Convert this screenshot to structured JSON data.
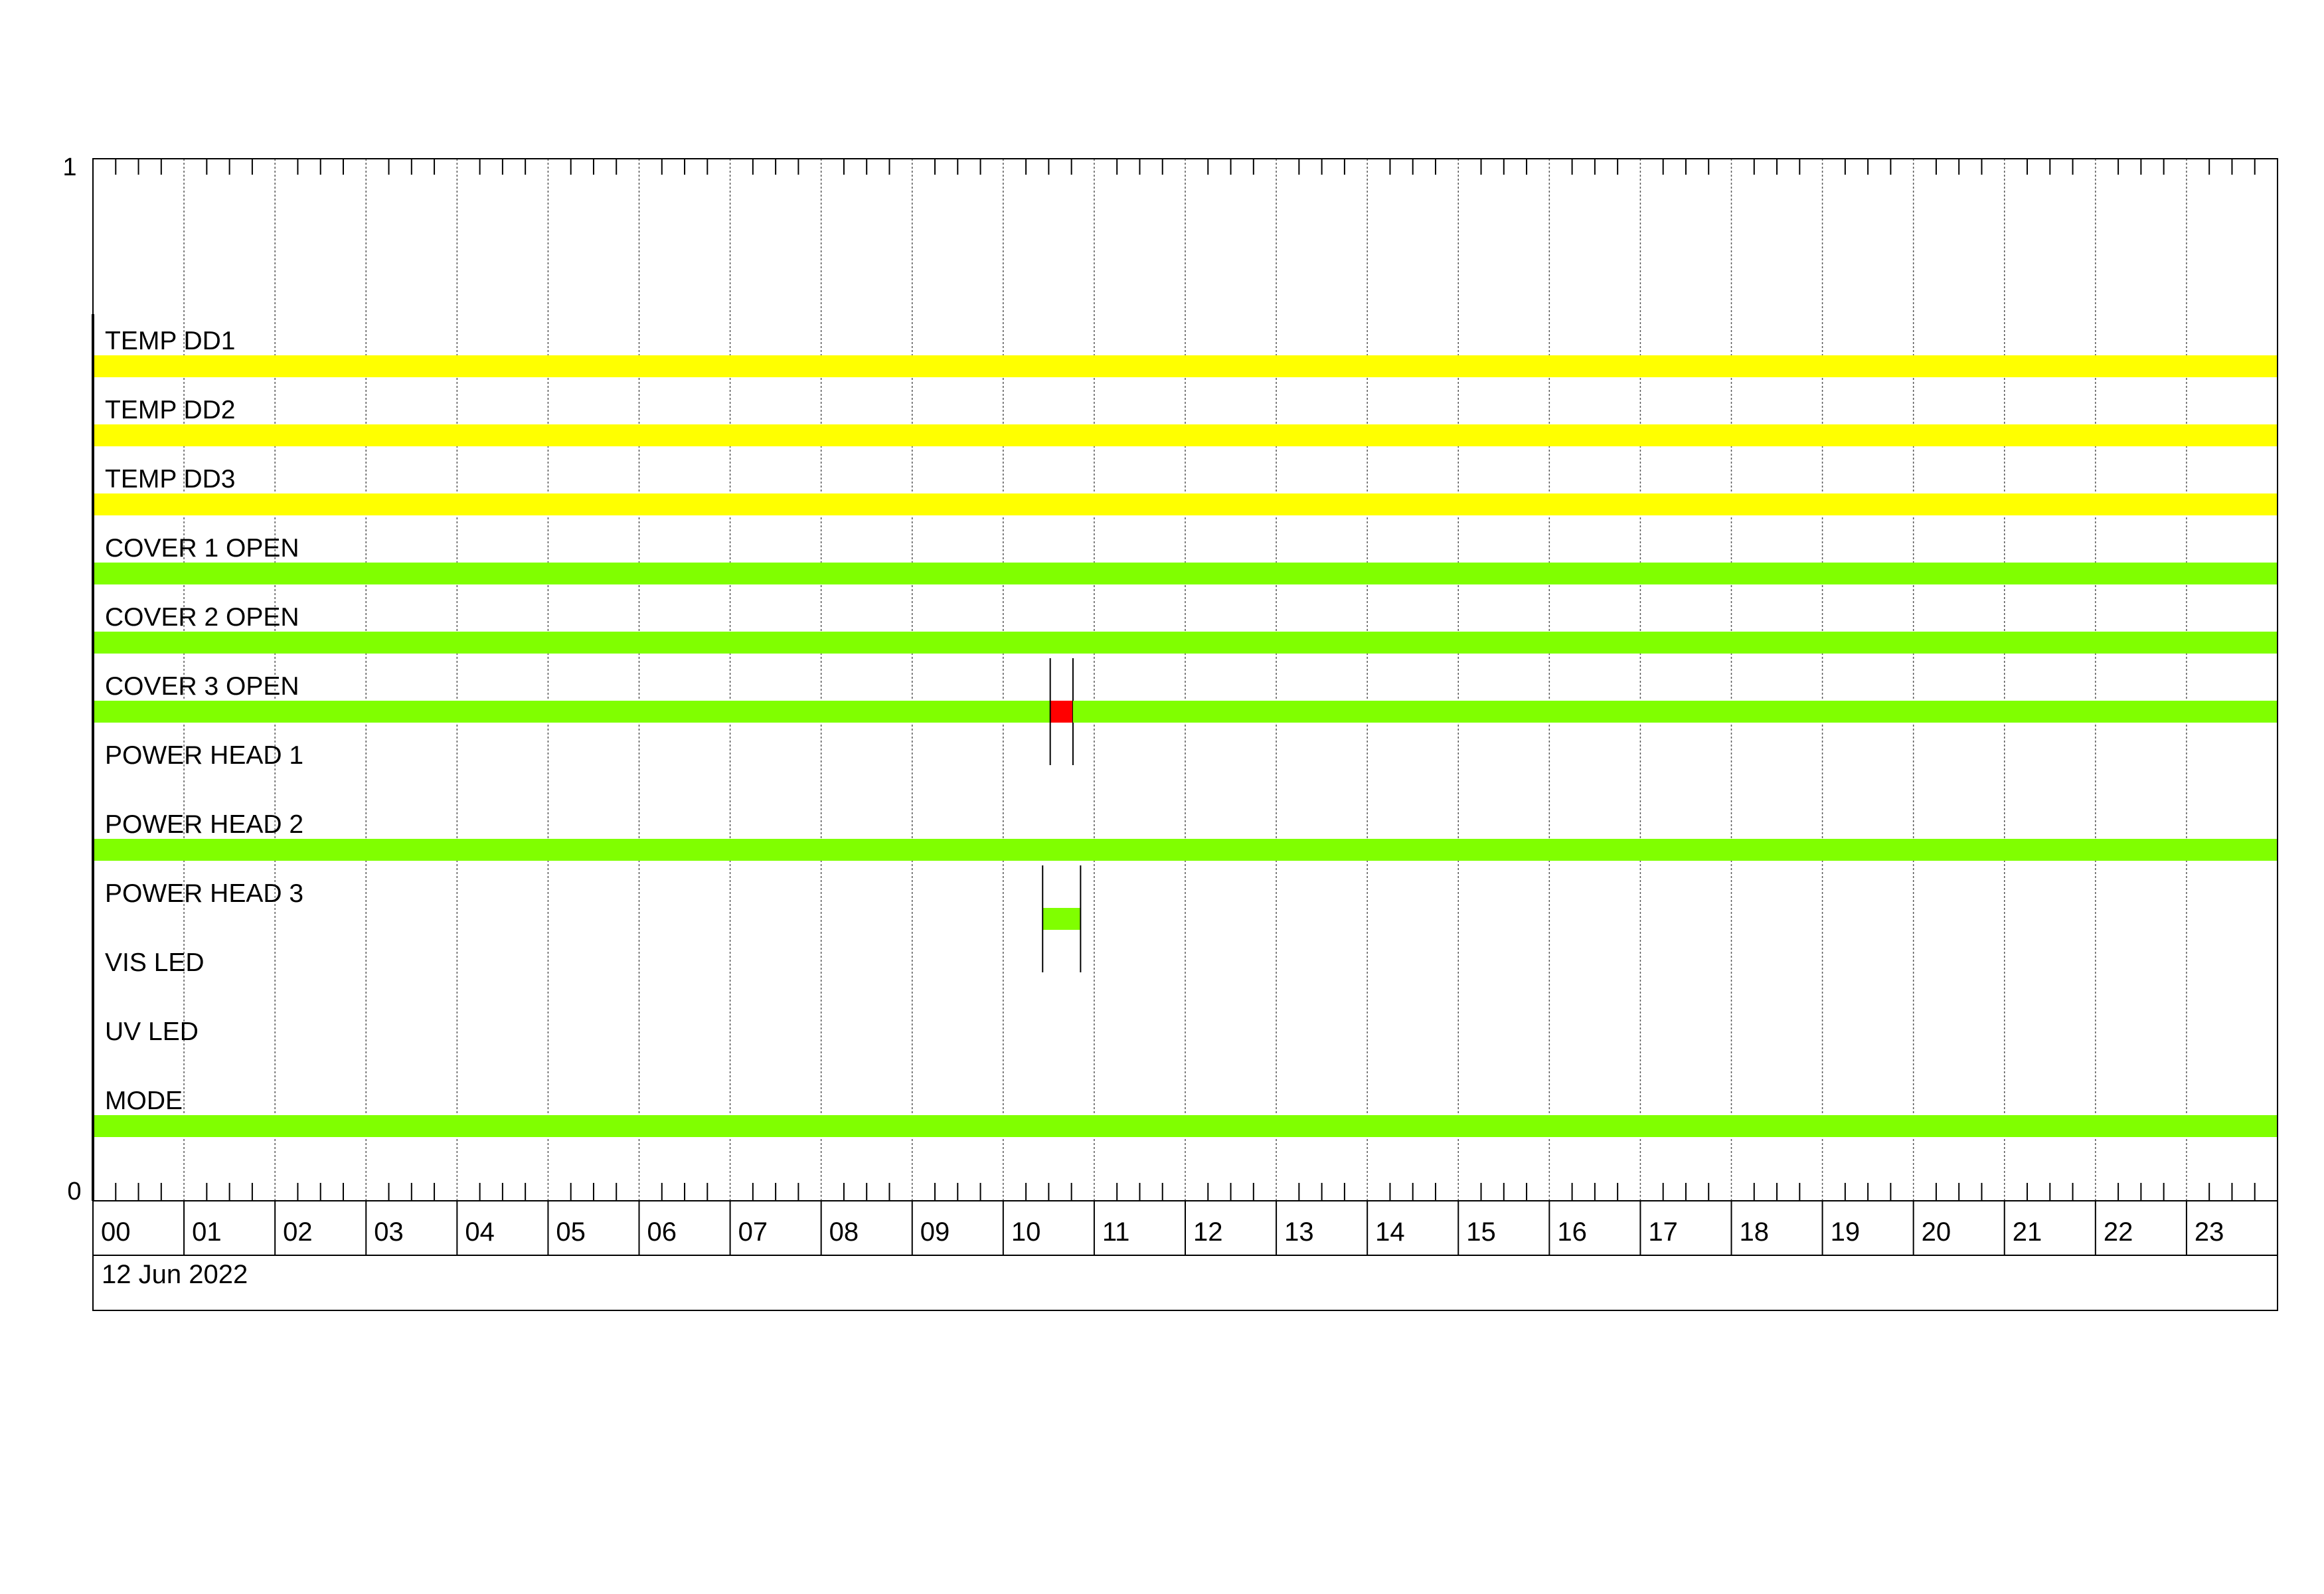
{
  "chart_data": {
    "type": "timeline",
    "date_label": "12 Jun 2022",
    "y_axis": {
      "top_label": "1",
      "bottom_label": "0"
    },
    "x_ticks": [
      "00",
      "01",
      "02",
      "03",
      "04",
      "05",
      "06",
      "07",
      "08",
      "09",
      "10",
      "11",
      "12",
      "13",
      "14",
      "15",
      "16",
      "17",
      "18",
      "19",
      "20",
      "21",
      "22",
      "23"
    ],
    "x_range_hours": [
      0,
      24
    ],
    "minor_ticks_per_hour": 4,
    "grid": true,
    "colors": {
      "temp": "#FFFF00",
      "ok": "#80FF00",
      "alarm": "#FF0000"
    },
    "rows": [
      {
        "label": "TEMP DD1",
        "segments": [
          {
            "start": "00:00",
            "end": "24:00",
            "color": "#FFFF00"
          }
        ]
      },
      {
        "label": "TEMP DD2",
        "segments": [
          {
            "start": "00:00",
            "end": "24:00",
            "color": "#FFFF00"
          }
        ]
      },
      {
        "label": "TEMP DD3",
        "segments": [
          {
            "start": "00:00",
            "end": "24:00",
            "color": "#FFFF00"
          }
        ]
      },
      {
        "label": "COVER 1 OPEN",
        "segments": [
          {
            "start": "00:00",
            "end": "24:00",
            "color": "#80FF00"
          }
        ]
      },
      {
        "label": "COVER 2 OPEN",
        "segments": [
          {
            "start": "00:00",
            "end": "24:00",
            "color": "#80FF00"
          }
        ]
      },
      {
        "label": "COVER 3 OPEN",
        "segments": [
          {
            "start": "00:00",
            "end": "10:31",
            "color": "#80FF00"
          },
          {
            "start": "10:31",
            "end": "10:46",
            "color": "#FF0000",
            "marked": true
          },
          {
            "start": "10:46",
            "end": "24:00",
            "color": "#80FF00"
          }
        ]
      },
      {
        "label": "POWER HEAD 1",
        "segments": []
      },
      {
        "label": "POWER HEAD 2",
        "segments": [
          {
            "start": "00:00",
            "end": "24:00",
            "color": "#80FF00"
          }
        ]
      },
      {
        "label": "POWER HEAD 3",
        "segments": [
          {
            "start": "10:26",
            "end": "10:51",
            "color": "#80FF00",
            "marked": true
          }
        ]
      },
      {
        "label": "VIS LED",
        "segments": []
      },
      {
        "label": "UV LED",
        "segments": []
      },
      {
        "label": "MODE",
        "segments": [
          {
            "start": "00:00",
            "end": "24:00",
            "color": "#80FF00"
          }
        ]
      }
    ]
  }
}
